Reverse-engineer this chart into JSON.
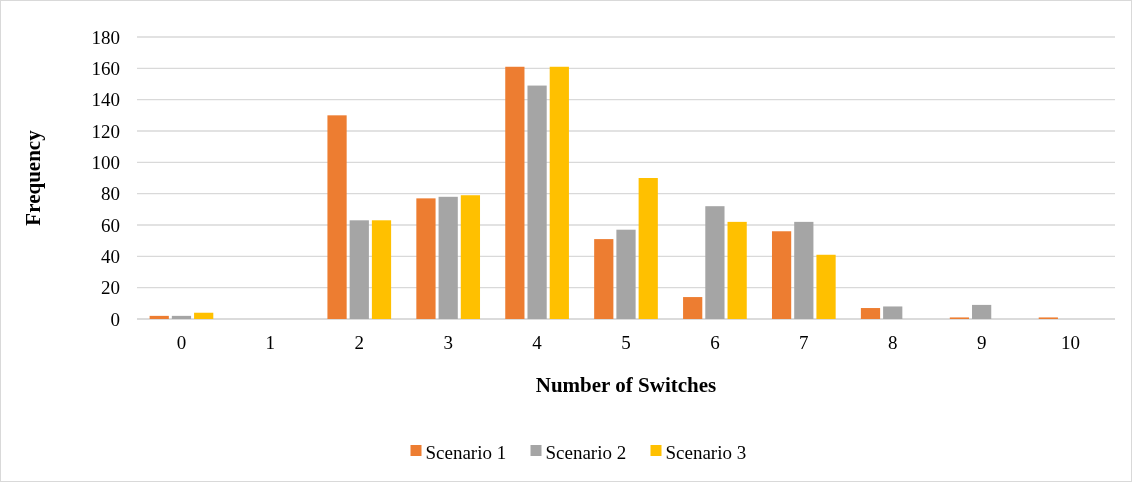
{
  "chart_data": {
    "type": "bar",
    "xlabel": "Number of Switches",
    "ylabel": "Frequency",
    "categories": [
      "0",
      "1",
      "2",
      "3",
      "4",
      "5",
      "6",
      "7",
      "8",
      "9",
      "10"
    ],
    "series": [
      {
        "name": "Scenario 1",
        "color": "#ed7d31",
        "values": [
          2,
          0,
          130,
          77,
          161,
          51,
          14,
          56,
          7,
          1,
          1
        ]
      },
      {
        "name": "Scenario 2",
        "color": "#a5a5a5",
        "values": [
          2,
          0,
          63,
          78,
          149,
          57,
          72,
          62,
          8,
          9,
          0
        ]
      },
      {
        "name": "Scenario 3",
        "color": "#ffc000",
        "values": [
          4,
          0,
          63,
          79,
          161,
          90,
          62,
          41,
          0,
          0,
          0
        ]
      }
    ],
    "ylim": [
      0,
      180
    ],
    "yticks": [
      0,
      20,
      40,
      60,
      80,
      100,
      120,
      140,
      160,
      180
    ],
    "grid": "y",
    "legend": "bottom"
  }
}
